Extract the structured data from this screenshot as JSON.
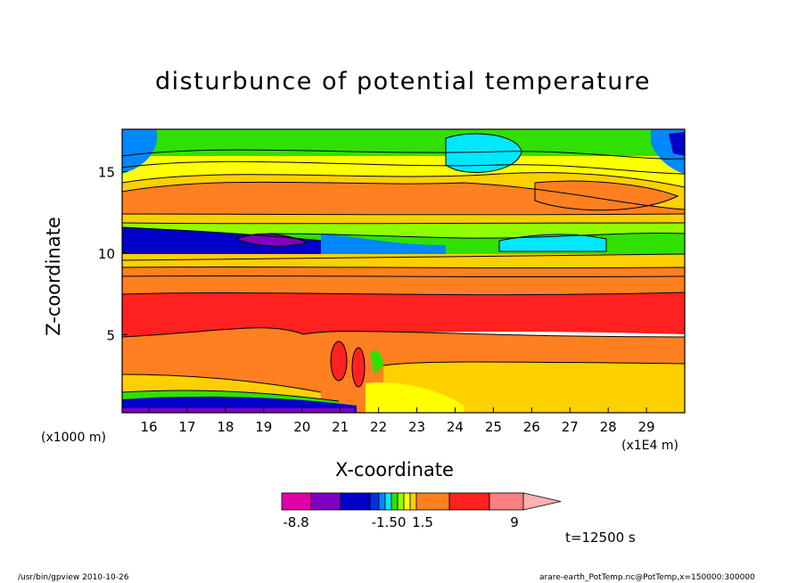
{
  "chart_data": {
    "type": "heatmap",
    "title": "disturbunce of potential temperature",
    "xlabel": "X-coordinate",
    "ylabel": "Z-coordinate",
    "x_unit_left": "(x1000 m)",
    "x_unit_right": "(x1E4 m)",
    "xlim": [
      15.3,
      30
    ],
    "ylim": [
      0.2,
      17.6
    ],
    "x_ticks": [
      16,
      17,
      18,
      19,
      20,
      21,
      22,
      23,
      24,
      25,
      26,
      27,
      28,
      29
    ],
    "y_ticks": [
      5,
      10,
      15
    ],
    "time_label": "t=12500 s",
    "colorbar": {
      "colors": [
        "#e000a8",
        "#8000c0",
        "#0000c8",
        "#0030e0",
        "#0088ff",
        "#00e8ff",
        "#30e000",
        "#90ff00",
        "#ffff00",
        "#ffd000",
        "#ff8020",
        "#ff2020",
        "#ff8080",
        "#ffb0b0"
      ],
      "tick_labels": [
        "-8.8",
        "-1.50",
        "1.5",
        "9"
      ]
    },
    "layers": [
      {
        "z": [
          0.2,
          1.0
        ],
        "category": "mixed-low"
      },
      {
        "z": [
          1.0,
          4.5
        ],
        "category": "orange"
      },
      {
        "z": [
          4.5,
          7.5
        ],
        "category": "red"
      },
      {
        "z": [
          7.5,
          9.5
        ],
        "category": "orange"
      },
      {
        "z": [
          9.5,
          11.5
        ],
        "category": "blue-green"
      },
      {
        "z": [
          11.5,
          14.0
        ],
        "category": "orange-yellow"
      },
      {
        "z": [
          14.0,
          17.6
        ],
        "category": "green-cyan"
      }
    ]
  },
  "footer": {
    "left": "/usr/bin/gpview   2010-10-26",
    "right": "arare-earth_PotTemp.nc@PotTemp,x=150000:300000"
  }
}
